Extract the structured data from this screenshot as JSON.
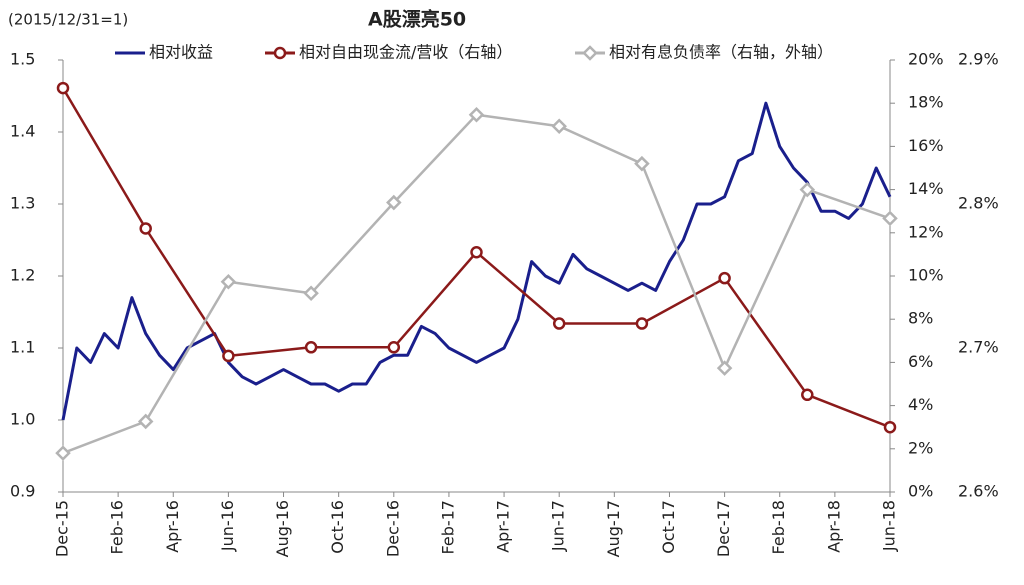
{
  "chart_data": {
    "type": "line",
    "title": "A股漂亮50",
    "subtitle": "(2015/12/31=1)",
    "xlim": [
      0,
      30
    ],
    "xticks": [
      {
        "value": 0,
        "label": "Dec-15"
      },
      {
        "value": 2,
        "label": "Feb-16"
      },
      {
        "value": 4,
        "label": "Apr-16"
      },
      {
        "value": 6,
        "label": "Jun-16"
      },
      {
        "value": 8,
        "label": "Aug-16"
      },
      {
        "value": 10,
        "label": "Oct-16"
      },
      {
        "value": 12,
        "label": "Dec-16"
      },
      {
        "value": 14,
        "label": "Feb-17"
      },
      {
        "value": 16,
        "label": "Apr-17"
      },
      {
        "value": 18,
        "label": "Jun-17"
      },
      {
        "value": 20,
        "label": "Aug-17"
      },
      {
        "value": 22,
        "label": "Oct-17"
      },
      {
        "value": 24,
        "label": "Dec-17"
      },
      {
        "value": 26,
        "label": "Feb-18"
      },
      {
        "value": 28,
        "label": "Apr-18"
      },
      {
        "value": 30,
        "label": "Jun-18"
      }
    ],
    "ylim": [
      0.9,
      1.5
    ],
    "yticks": [
      0.9,
      {
        "value": 1,
        "label": "1.0"
      },
      1.1,
      1.2,
      1.3,
      1.4,
      1.5
    ],
    "y2lim": [
      0,
      20
    ],
    "y2ticks": [
      {
        "value": 0,
        "label": "0%"
      },
      {
        "value": 2,
        "label": "2%"
      },
      {
        "value": 4,
        "label": "4%"
      },
      {
        "value": 6,
        "label": "6%"
      },
      {
        "value": 8,
        "label": "8%"
      },
      {
        "value": 10,
        "label": "10%"
      },
      {
        "value": 12,
        "label": "12%"
      },
      {
        "value": 14,
        "label": "14%"
      },
      {
        "value": 16,
        "label": "16%"
      },
      {
        "value": 18,
        "label": "18%"
      },
      {
        "value": 20,
        "label": "20%"
      }
    ],
    "y3lim": [
      2.6,
      2.9
    ],
    "y3ticks": [
      {
        "value": 2.6,
        "label": "2.6%"
      },
      {
        "value": 2.7,
        "label": "2.7%"
      },
      {
        "value": 2.8,
        "label": "2.8%"
      },
      {
        "value": 2.9,
        "label": "2.9%"
      }
    ],
    "series": [
      {
        "name": "相对收益",
        "color": "#1a1f8c",
        "marker": "none",
        "x": [
          0,
          0.5,
          1,
          1.5,
          2,
          2.5,
          3,
          3.5,
          4,
          4.5,
          5,
          5.5,
          6,
          6.5,
          7,
          7.5,
          8,
          8.5,
          9,
          9.5,
          10,
          10.5,
          11,
          11.5,
          12,
          12.5,
          13,
          13.5,
          14,
          14.5,
          15,
          15.5,
          16,
          16.5,
          17,
          17.5,
          18,
          18.5,
          19,
          19.5,
          20,
          20.5,
          21,
          21.5,
          22,
          22.5,
          23,
          23.5,
          24,
          24.5,
          25,
          25.5,
          26,
          26.5,
          27,
          27.5,
          28,
          28.5,
          29,
          29.5,
          30
        ],
        "values": [
          1.0,
          1.1,
          1.08,
          1.12,
          1.1,
          1.17,
          1.12,
          1.09,
          1.07,
          1.1,
          1.11,
          1.12,
          1.08,
          1.06,
          1.05,
          1.06,
          1.07,
          1.06,
          1.05,
          1.05,
          1.04,
          1.05,
          1.05,
          1.08,
          1.09,
          1.09,
          1.13,
          1.12,
          1.1,
          1.09,
          1.08,
          1.09,
          1.1,
          1.14,
          1.22,
          1.2,
          1.19,
          1.23,
          1.21,
          1.2,
          1.19,
          1.18,
          1.19,
          1.18,
          1.22,
          1.25,
          1.3,
          1.3,
          1.31,
          1.36,
          1.37,
          1.44,
          1.38,
          1.35,
          1.33,
          1.29,
          1.29,
          1.28,
          1.3,
          1.35,
          1.31
        ]
      },
      {
        "name": "相对自由现金流/营收（右轴）",
        "color": "#8b1a1a",
        "marker": "circle",
        "axis": "y2",
        "x": [
          0,
          3,
          6,
          9,
          12,
          15,
          18,
          21,
          24,
          27,
          30
        ],
        "values": [
          18.7,
          12.2,
          6.3,
          6.7,
          6.7,
          11.1,
          7.8,
          7.8,
          9.9,
          4.5,
          3.0
        ]
      },
      {
        "name": "相对有息负债率（右轴，外轴）",
        "color": "#b3b3b3",
        "marker": "diamond",
        "axis": "y3",
        "x": [
          0,
          3,
          6,
          9,
          12,
          15,
          18,
          21,
          24,
          27,
          30
        ],
        "values": [
          2.627,
          2.649,
          2.746,
          2.738,
          2.801,
          2.862,
          2.854,
          2.828,
          2.686,
          2.81,
          2.79
        ]
      }
    ]
  }
}
